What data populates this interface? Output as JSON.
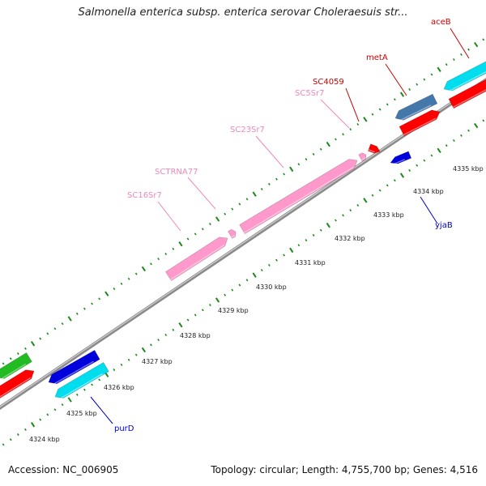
{
  "title": "Salmonella enterica subsp. enterica serovar Choleraesuis str...",
  "footer": {
    "accession": "Accession: NC_006905",
    "summary": "Topology: circular; Length: 4,755,700 bp; Genes: 4,516"
  },
  "colors": {
    "backbone": "#8a8a8a",
    "tick": "#1a8a1a",
    "forward_label": "#cc0000",
    "reverse_label": "#0000cc",
    "rna": "#ff99cc",
    "rna_label": "#ee88bb",
    "cds_red": "#ff0000",
    "cds_blue": "#0000dd",
    "cds_cyan": "#00ddee",
    "cds_steel": "#4477aa",
    "cds_green": "#22bb22"
  },
  "scale": {
    "tick_labels": [
      "4324 kbp",
      "4325 kbp",
      "4326 kbp",
      "4327 kbp",
      "4328 kbp",
      "4329 kbp",
      "4330 kbp",
      "4331 kbp",
      "4332 kbp",
      "4333 kbp",
      "4334 kbp",
      "4335 kbp"
    ]
  },
  "labels": {
    "aceB": "aceB",
    "metA": "metA",
    "SC4059": "SC4059",
    "SC5Sr7": "SC5Sr7",
    "SC23Sr7": "SC23Sr7",
    "SCTRNA77": "SCTRNA77",
    "SC16Sr7": "SC16Sr7",
    "yjaB": "yjaB",
    "purD": "purD"
  }
}
